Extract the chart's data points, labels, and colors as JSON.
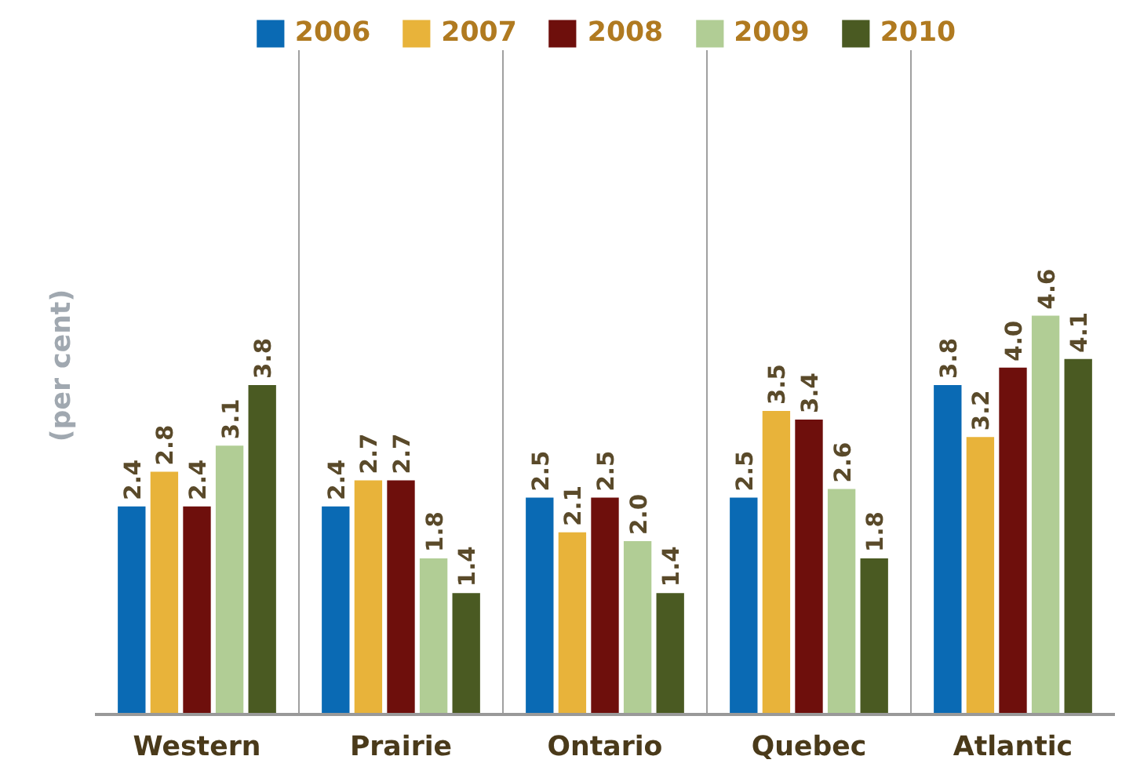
{
  "chart_data": {
    "type": "bar",
    "ylabel": "(per cent)",
    "categories": [
      "Western",
      "Prairie",
      "Ontario",
      "Quebec",
      "Atlantic"
    ],
    "series": [
      {
        "name": "2006",
        "color": "#0a6ab4",
        "values": [
          2.4,
          2.4,
          2.5,
          2.5,
          3.8
        ],
        "value_labels": [
          "2.4",
          "2.4",
          "2.5",
          "2.5",
          "3.8"
        ]
      },
      {
        "name": "2007",
        "color": "#e8b33a",
        "values": [
          2.8,
          2.7,
          2.1,
          3.5,
          3.2
        ],
        "value_labels": [
          "2.8",
          "2.7",
          "2.1",
          "3.5",
          "3.2"
        ]
      },
      {
        "name": "2008",
        "color": "#6e0f0c",
        "values": [
          2.4,
          2.7,
          2.5,
          3.4,
          4.0
        ],
        "value_labels": [
          "2.4",
          "2.7",
          "2.5",
          "3.4",
          "4.0"
        ]
      },
      {
        "name": "2009",
        "color": "#b1cd95",
        "values": [
          3.1,
          1.8,
          2.0,
          2.6,
          4.6
        ],
        "value_labels": [
          "3.1",
          "1.8",
          "2.0",
          "2.6",
          "4.6"
        ]
      },
      {
        "name": "2010",
        "color": "#4a5a22",
        "values": [
          3.8,
          1.4,
          1.4,
          1.8,
          4.1
        ],
        "value_labels": [
          "3.8",
          "1.4",
          "1.4",
          "1.8",
          "4.1"
        ]
      }
    ],
    "grid": "x",
    "legend": "top"
  }
}
